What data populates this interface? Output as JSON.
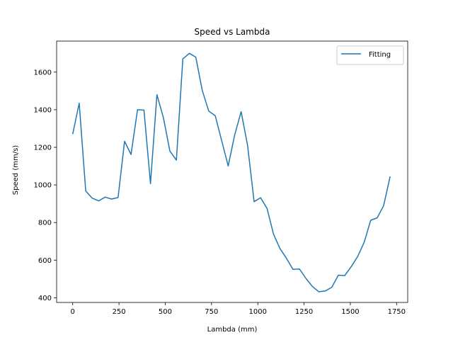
{
  "chart_data": {
    "type": "line",
    "title": "Speed vs Lambda",
    "xlabel": "Lambda (mm)",
    "ylabel": "Speed (mm/s)",
    "xlim": [
      -87,
      1810
    ],
    "ylim": [
      375,
      1765
    ],
    "xticks": [
      0,
      250,
      500,
      750,
      1000,
      1250,
      1500,
      1750
    ],
    "yticks": [
      400,
      600,
      800,
      1000,
      1200,
      1400,
      1600
    ],
    "grid": false,
    "legend_position": "top-right",
    "colors": {
      "series": "#1f77b4",
      "axes": "#000000",
      "legend_border": "#cccccc"
    },
    "series": [
      {
        "name": "Fitting",
        "x": [
          0,
          35,
          70,
          105,
          140,
          175,
          210,
          245,
          280,
          315,
          350,
          385,
          420,
          455,
          490,
          525,
          560,
          595,
          630,
          665,
          700,
          735,
          770,
          805,
          840,
          875,
          910,
          945,
          980,
          1015,
          1050,
          1085,
          1120,
          1155,
          1190,
          1225,
          1260,
          1295,
          1330,
          1365,
          1400,
          1435,
          1470,
          1505,
          1540,
          1575,
          1610,
          1645,
          1680,
          1715
        ],
        "y": [
          1270,
          1435,
          968,
          930,
          915,
          935,
          925,
          933,
          1232,
          1162,
          1400,
          1398,
          1007,
          1480,
          1357,
          1180,
          1132,
          1670,
          1700,
          1680,
          1502,
          1393,
          1368,
          1235,
          1101,
          1265,
          1390,
          1210,
          911,
          932,
          875,
          738,
          661,
          610,
          551,
          553,
          503,
          460,
          432,
          436,
          456,
          520,
          518,
          566,
          620,
          696,
          812,
          825,
          890,
          1045
        ]
      }
    ]
  }
}
